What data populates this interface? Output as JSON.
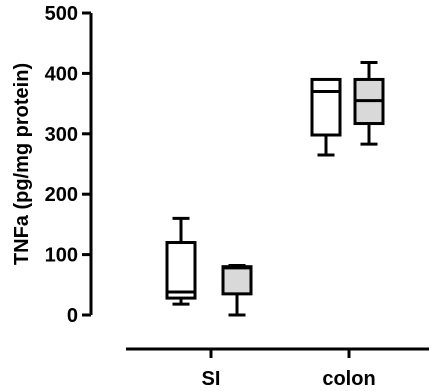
{
  "chart_data": {
    "type": "box",
    "ylabel": "TNFa  (pg/mg protein)",
    "ylim": [
      0,
      500
    ],
    "yticks": [
      0,
      100,
      200,
      300,
      400,
      500
    ],
    "categories": [
      "SI",
      "colon"
    ],
    "grid": false,
    "boxes": [
      {
        "category": "SI",
        "fill": "#ffffff",
        "min": 18,
        "q1": 28,
        "median": 38,
        "q3": 120,
        "max": 160
      },
      {
        "category": "SI",
        "fill": "#d9d9d9",
        "min": 0,
        "q1": 35,
        "median": 78,
        "q3": 80,
        "max": 82
      },
      {
        "category": "colon",
        "fill": "#ffffff",
        "min": 265,
        "q1": 298,
        "median": 370,
        "q3": 390,
        "max": 390
      },
      {
        "category": "colon",
        "fill": "#d9d9d9",
        "min": 283,
        "q1": 317,
        "median": 355,
        "q3": 390,
        "max": 418
      }
    ]
  }
}
